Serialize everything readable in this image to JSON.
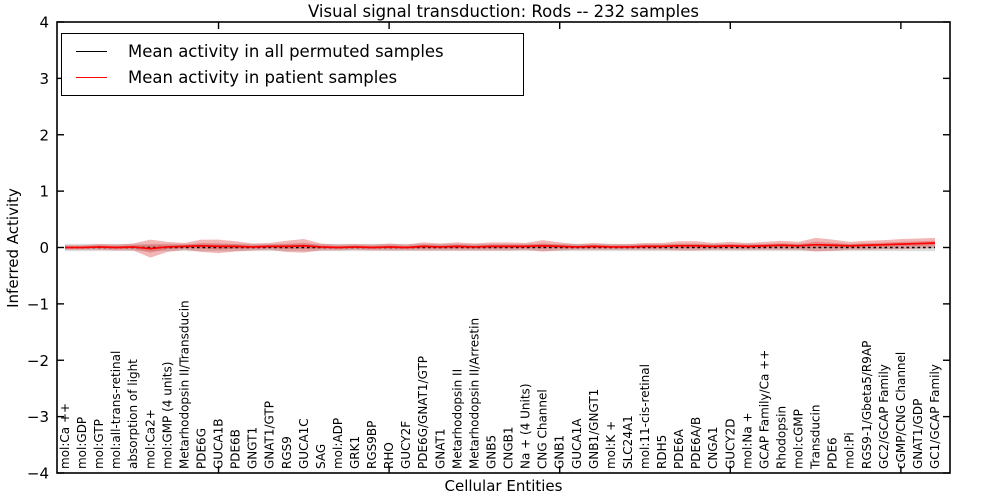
{
  "chart_data": {
    "type": "line",
    "title": "Visual signal transduction: Rods -- 232 samples",
    "xlabel": "Cellular Entities",
    "ylabel": "Inferred Activity",
    "ylim": [
      -4,
      4
    ],
    "yticks": [
      -4,
      -3,
      -2,
      -1,
      0,
      1,
      2,
      3,
      4
    ],
    "xticks_major_idx": [
      9,
      19,
      29,
      39,
      49
    ],
    "grid": false,
    "legend_position": "upper-left",
    "categories": [
      "mol:Ca ++",
      "mol:GDP",
      "mol:GTP",
      "mol:all-trans-retinal",
      "absorption of light",
      "mol:Ca2+",
      "mol:GMP (4 units)",
      "Metarhodopsin II/Transducin",
      "PDE6G",
      "GUCA1B",
      "PDE6B",
      "GNGT1",
      "GNAT1/GTP",
      "RGS9",
      "GUCA1C",
      "SAG",
      "mol:ADP",
      "GRK1",
      "RGS9BP",
      "RHO",
      "GUCY2F",
      "PDE6G/GNAT1/GTP",
      "GNAT1",
      "Metarhodopsin II",
      "Metarhodopsin II/Arrestin",
      "GNB5",
      "CNGB1",
      "Na + (4 Units)",
      "CNG Channel",
      "GNB1",
      "GUCA1A",
      "GNB1/GNGT1",
      "mol:K +",
      "SLC24A1",
      "mol:11-cis-retinal",
      "RDH5",
      "PDE6A",
      "PDE6A/B",
      "CNGA1",
      "GUCY2D",
      "mol:Na +",
      "GCAP Family/Ca ++",
      "Rhodopsin",
      "mol:cGMP",
      "Transducin",
      "PDE6",
      "mol:Pi",
      "RGS9-1/Gbeta5/R9AP",
      "GC2/GCAP Family",
      "cGMP/CNG Channel",
      "GNAT1/GDP",
      "GC1/GCAP Family"
    ],
    "series": [
      {
        "name": "Mean activity in all permuted samples",
        "color": "#000000",
        "style": "dashed",
        "values": [
          0,
          0,
          0,
          0,
          0,
          0,
          0,
          0,
          0,
          0,
          0,
          0,
          0,
          0,
          0,
          0,
          0,
          0,
          0,
          0,
          0,
          0,
          0,
          0,
          0,
          0,
          0,
          0,
          0,
          0,
          0,
          0,
          0,
          0,
          0,
          0,
          0,
          0,
          0,
          0,
          0,
          0,
          0,
          0,
          0,
          0,
          0,
          0,
          0,
          0,
          0,
          0
        ]
      },
      {
        "name": "Mean activity in patient samples",
        "color": "#ff0000",
        "style": "solid",
        "values": [
          0,
          0,
          0.01,
          0,
          0.01,
          -0.02,
          0.01,
          0.02,
          0.03,
          0.02,
          0.02,
          0.01,
          0.02,
          0.02,
          0.03,
          0.01,
          0,
          0.01,
          0,
          0.01,
          0,
          0.02,
          0.01,
          0.02,
          0.01,
          0.02,
          0.02,
          0.02,
          0.03,
          0.02,
          0.01,
          0.02,
          0.01,
          0.01,
          0.02,
          0.02,
          0.03,
          0.03,
          0.02,
          0.03,
          0.02,
          0.03,
          0.04,
          0.03,
          0.05,
          0.04,
          0.03,
          0.04,
          0.05,
          0.06,
          0.07,
          0.08
        ]
      }
    ],
    "bands": [
      {
        "name": "permuted-samples-band",
        "color": "#bbbbbb",
        "opacity": 0.5,
        "center": 0,
        "half_width": 0.065
      },
      {
        "name": "patient-samples-band",
        "color": "#dd4b4b",
        "opacity": 0.4,
        "half_widths": [
          0.04,
          0.04,
          0.05,
          0.05,
          0.06,
          0.16,
          0.09,
          0.06,
          0.11,
          0.12,
          0.09,
          0.06,
          0.06,
          0.1,
          0.12,
          0.06,
          0.05,
          0.05,
          0.05,
          0.06,
          0.05,
          0.07,
          0.06,
          0.07,
          0.06,
          0.07,
          0.07,
          0.06,
          0.1,
          0.07,
          0.05,
          0.06,
          0.05,
          0.05,
          0.06,
          0.06,
          0.08,
          0.08,
          0.06,
          0.07,
          0.06,
          0.07,
          0.08,
          0.07,
          0.12,
          0.1,
          0.07,
          0.08,
          0.08,
          0.09,
          0.09,
          0.09
        ]
      }
    ],
    "colors": {
      "frame": "#000000",
      "background": "#ffffff"
    }
  }
}
